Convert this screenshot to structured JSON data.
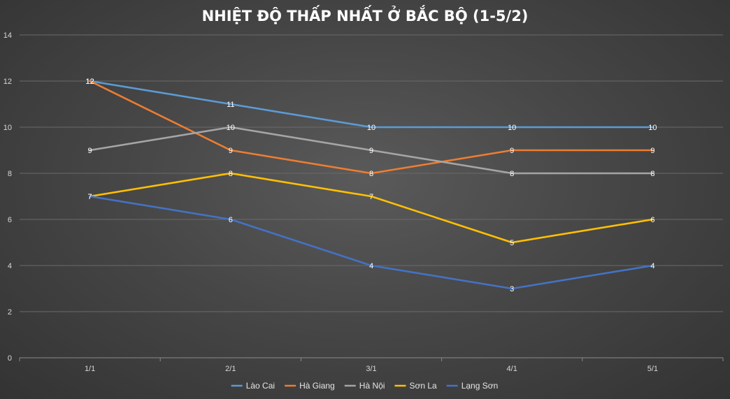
{
  "chart_data": {
    "type": "line",
    "title": "NHIỆT ĐỘ THẤP NHẤT Ở BẮC BỘ (1-5/2)",
    "xlabel": "",
    "ylabel": "",
    "categories": [
      "1/1",
      "2/1",
      "3/1",
      "4/1",
      "5/1"
    ],
    "ylim": [
      0,
      14
    ],
    "yticks": [
      0,
      2,
      4,
      6,
      8,
      10,
      12,
      14
    ],
    "grid": true,
    "legend_position": "bottom",
    "series": [
      {
        "name": "Lào Cai",
        "color": "#5b9bd5",
        "values": [
          12,
          11,
          10,
          10,
          10
        ]
      },
      {
        "name": "Hà Giang",
        "color": "#ed7d31",
        "values": [
          12,
          9,
          8,
          9,
          9
        ]
      },
      {
        "name": "Hà Nội",
        "color": "#a5a5a5",
        "values": [
          9,
          10,
          9,
          8,
          8
        ]
      },
      {
        "name": "Sơn La",
        "color": "#ffc000",
        "values": [
          7,
          8,
          7,
          5,
          6
        ]
      },
      {
        "name": "Lạng Sơn",
        "color": "#4472c4",
        "values": [
          7,
          6,
          4,
          3,
          4
        ]
      }
    ]
  }
}
